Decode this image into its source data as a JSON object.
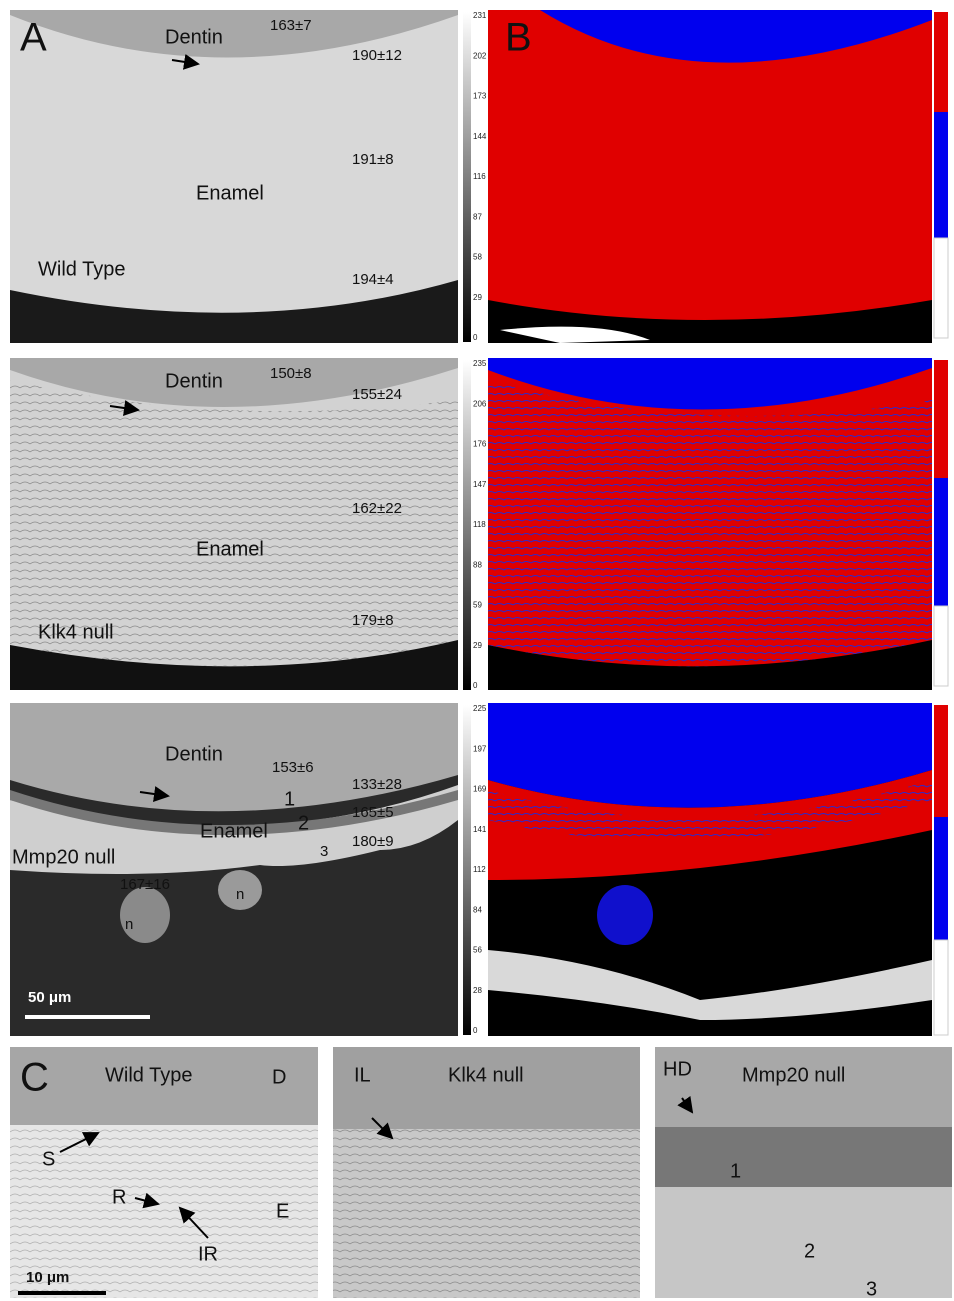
{
  "panel_labels": [
    "A",
    "B",
    "C"
  ],
  "rows": [
    {
      "genotype": "Wild Type",
      "dentin": "Dentin",
      "enamel": "Enamel",
      "measurements": [
        "163±7",
        "190±12",
        "191±8",
        "194±4"
      ],
      "colorbar": [
        "231",
        "202",
        "173",
        "144",
        "116",
        "87",
        "58",
        "29",
        "0"
      ]
    },
    {
      "genotype": "Klk4 null",
      "dentin": "Dentin",
      "enamel": "Enamel",
      "measurements": [
        "150±8",
        "155±24",
        "162±22",
        "179±8"
      ],
      "colorbar": [
        "235",
        "206",
        "176",
        "147",
        "118",
        "88",
        "59",
        "29",
        "0"
      ]
    },
    {
      "genotype": "Mmp20 null",
      "dentin": "Dentin",
      "enamel": "Enamel",
      "measurements": [
        "153±6",
        "133±28",
        "165±5",
        "180±9",
        "167±16"
      ],
      "layers": [
        "1",
        "2",
        "3"
      ],
      "nodules": [
        "n",
        "n"
      ],
      "colorbar": [
        "225",
        "197",
        "169",
        "141",
        "112",
        "84",
        "56",
        "28",
        "0"
      ]
    }
  ],
  "scale_bar_a": "50 μm",
  "detail_panels": [
    {
      "title": "Wild Type",
      "labels": [
        "D",
        "S",
        "R",
        "IR",
        "E"
      ],
      "scale_bar": "10 μm"
    },
    {
      "title": "Klk4 null",
      "labels": [
        "IL"
      ]
    },
    {
      "title": "Mmp20 null",
      "labels": [
        "HD",
        "1",
        "2",
        "3"
      ]
    }
  ]
}
